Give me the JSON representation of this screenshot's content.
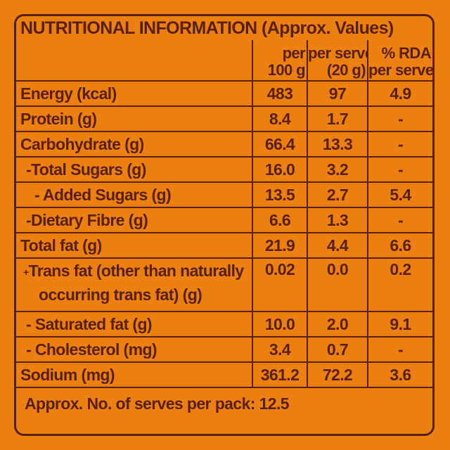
{
  "title": "NUTRITIONAL INFORMATION (Approx. Values)",
  "columns": [
    {
      "line1": "per",
      "line2": "100 g"
    },
    {
      "line1": "per serve",
      "line2": "(20 g)"
    },
    {
      "line1": "% RDA",
      "line2": "per serve"
    }
  ],
  "rows": [
    {
      "name": "Energy (kcal)",
      "per100": "483",
      "perServe": "97",
      "rda": "4.9"
    },
    {
      "name": "Protein (g)",
      "per100": "8.4",
      "perServe": "1.7",
      "rda": "-"
    },
    {
      "name": "Carbohydrate (g)",
      "per100": "66.4",
      "perServe": "13.3",
      "rda": "-"
    },
    {
      "name": "-Total Sugars (g)",
      "per100": "16.0",
      "perServe": "3.2",
      "rda": "-"
    },
    {
      "name": "- Added Sugars (g)",
      "per100": "13.5",
      "perServe": "2.7",
      "rda": "5.4"
    },
    {
      "name": "-Dietary Fibre (g)",
      "per100": "6.6",
      "perServe": "1.3",
      "rda": "-"
    },
    {
      "name": "Total fat (g)",
      "per100": "21.9",
      "perServe": "4.4",
      "rda": "6.6"
    },
    {
      "name_mark": "+",
      "name_line1": "Trans fat (other than naturally",
      "name_line2": "occurring trans fat) (g)",
      "per100": "0.02",
      "perServe": "0.0",
      "rda": "0.2"
    },
    {
      "name": "- Saturated fat (g)",
      "per100": "10.0",
      "perServe": "2.0",
      "rda": "9.1"
    },
    {
      "name": "- Cholesterol (mg)",
      "per100": "3.4",
      "perServe": "0.7",
      "rda": "-"
    },
    {
      "name": "Sodium (mg)",
      "per100": "361.2",
      "perServe": "72.2",
      "rda": "3.6"
    }
  ],
  "footer": "Approx. No. of serves per pack: 12.5"
}
